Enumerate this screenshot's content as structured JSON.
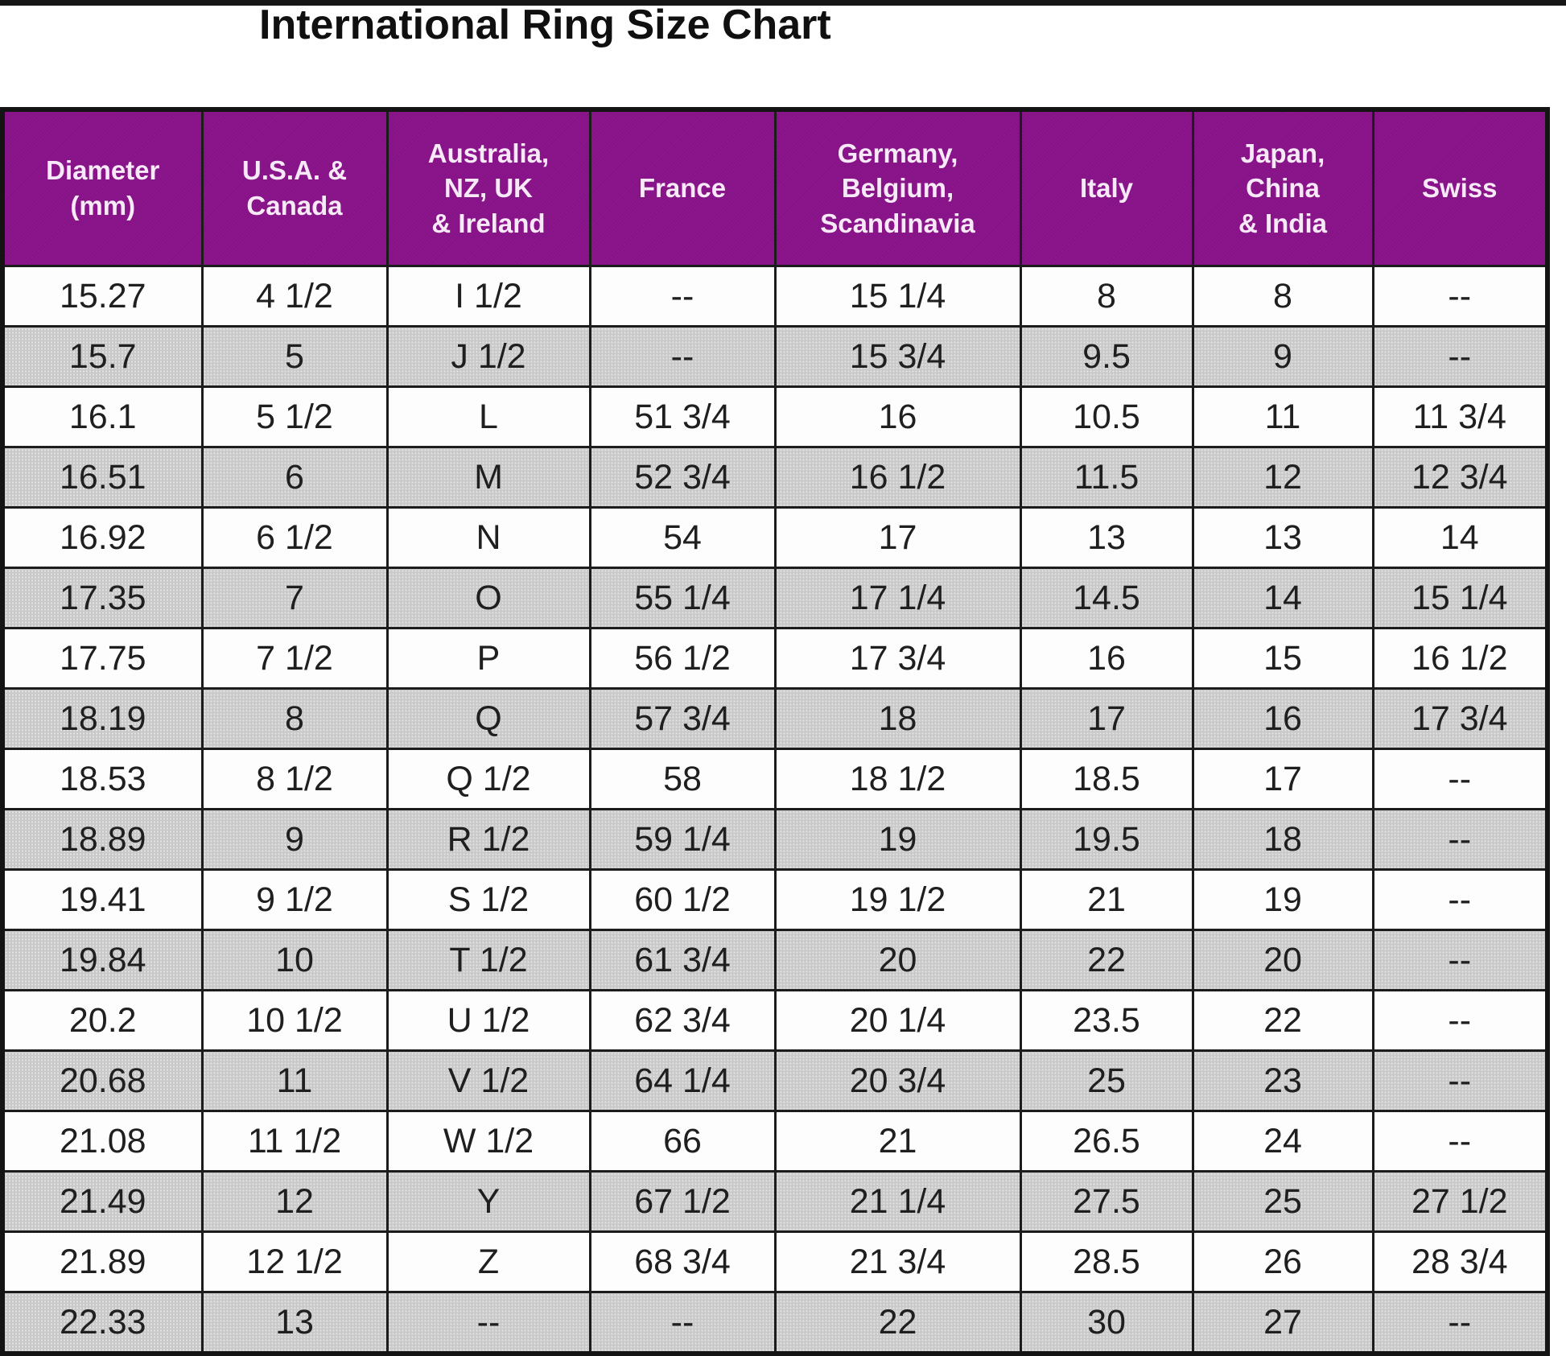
{
  "title": "International Ring Size Chart",
  "colors": {
    "header_bg": "#8C148C",
    "header_text": "#F7E9F7",
    "row_bg": "#FDFDFD",
    "row_alt_bg": "#C9C9C9",
    "border": "#1C1C1C"
  },
  "chart_data": {
    "type": "table",
    "title": "International Ring Size Chart",
    "columns": [
      {
        "id": "diameter-mm",
        "label": "Diameter\n(mm)"
      },
      {
        "id": "usa-canada",
        "label": "U.S.A. &\nCanada"
      },
      {
        "id": "australia-nz-uk-ireland",
        "label": "Australia,\nNZ, UK\n& Ireland"
      },
      {
        "id": "france",
        "label": "France"
      },
      {
        "id": "germany-belgium-scandinavia",
        "label": "Germany,\nBelgium,\nScandinavia"
      },
      {
        "id": "italy",
        "label": "Italy"
      },
      {
        "id": "japan-china-india",
        "label": "Japan,\nChina\n& India"
      },
      {
        "id": "swiss",
        "label": "Swiss"
      }
    ],
    "rows": [
      [
        "15.27",
        "4 1/2",
        "I 1/2",
        "--",
        "15 1/4",
        "8",
        "8",
        "--"
      ],
      [
        "15.7",
        "5",
        "J 1/2",
        "--",
        "15 3/4",
        "9.5",
        "9",
        "--"
      ],
      [
        "16.1",
        "5 1/2",
        "L",
        "51 3/4",
        "16",
        "10.5",
        "11",
        "11 3/4"
      ],
      [
        "16.51",
        "6",
        "M",
        "52 3/4",
        "16 1/2",
        "11.5",
        "12",
        "12 3/4"
      ],
      [
        "16.92",
        "6 1/2",
        "N",
        "54",
        "17",
        "13",
        "13",
        "14"
      ],
      [
        "17.35",
        "7",
        "O",
        "55 1/4",
        "17 1/4",
        "14.5",
        "14",
        "15 1/4"
      ],
      [
        "17.75",
        "7 1/2",
        "P",
        "56 1/2",
        "17 3/4",
        "16",
        "15",
        "16 1/2"
      ],
      [
        "18.19",
        "8",
        "Q",
        "57 3/4",
        "18",
        "17",
        "16",
        "17 3/4"
      ],
      [
        "18.53",
        "8 1/2",
        "Q 1/2",
        "58",
        "18 1/2",
        "18.5",
        "17",
        "--"
      ],
      [
        "18.89",
        "9",
        "R 1/2",
        "59 1/4",
        "19",
        "19.5",
        "18",
        "--"
      ],
      [
        "19.41",
        "9 1/2",
        "S 1/2",
        "60 1/2",
        "19 1/2",
        "21",
        "19",
        "--"
      ],
      [
        "19.84",
        "10",
        "T 1/2",
        "61 3/4",
        "20",
        "22",
        "20",
        "--"
      ],
      [
        "20.2",
        "10 1/2",
        "U 1/2",
        "62 3/4",
        "20 1/4",
        "23.5",
        "22",
        "--"
      ],
      [
        "20.68",
        "11",
        "V 1/2",
        "64 1/4",
        "20 3/4",
        "25",
        "23",
        "--"
      ],
      [
        "21.08",
        "11 1/2",
        "W 1/2",
        "66",
        "21",
        "26.5",
        "24",
        "--"
      ],
      [
        "21.49",
        "12",
        "Y",
        "67 1/2",
        "21 1/4",
        "27.5",
        "25",
        "27 1/2"
      ],
      [
        "21.89",
        "12 1/2",
        "Z",
        "68 3/4",
        "21 3/4",
        "28.5",
        "26",
        "28 3/4"
      ],
      [
        "22.33",
        "13",
        "--",
        "--",
        "22",
        "30",
        "27",
        "--"
      ]
    ]
  }
}
